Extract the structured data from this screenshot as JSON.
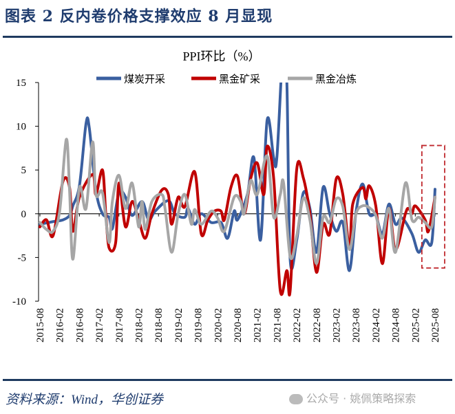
{
  "figure_title": "图表 2 反内卷价格支撑效应 8 月显现",
  "source_text": "资料来源：Wind，华创证券",
  "watermark": "公众号 · 姚佩策略探索",
  "chart_data": {
    "type": "line",
    "title": "PPI环比（%）",
    "xlabel": "",
    "ylabel": "",
    "ylim": [
      -10,
      15
    ],
    "yticks": [
      -10,
      -5,
      0,
      5,
      10,
      15
    ],
    "xlim": [
      "2015-08",
      "2025-08"
    ],
    "xtick_labels": [
      "2015-08",
      "2016-02",
      "2016-08",
      "2017-02",
      "2017-08",
      "2018-02",
      "2018-08",
      "2019-02",
      "2019-08",
      "2020-02",
      "2020-08",
      "2021-02",
      "2021-08",
      "2022-02",
      "2022-08",
      "2023-02",
      "2023-08",
      "2024-02",
      "2024-08",
      "2025-02",
      "2025-08"
    ],
    "grid": false,
    "legend_position": "top",
    "highlight_box": {
      "x_range": [
        "2025-04",
        "2025-08"
      ],
      "y_range": [
        -6.2,
        7.8
      ],
      "color": "#c0282d",
      "style": "dashed"
    },
    "series": [
      {
        "name": "煤炭开采",
        "color": "#3a5fa0",
        "points": [
          [
            "2015-08",
            -1.2
          ],
          [
            "2015-12",
            -0.9
          ],
          [
            "2016-03",
            -0.7
          ],
          [
            "2016-05",
            -0.2
          ],
          [
            "2016-06",
            0.9
          ],
          [
            "2016-08",
            3.2
          ],
          [
            "2016-10",
            10.3
          ],
          [
            "2016-11",
            9.8
          ],
          [
            "2017-01",
            2.7
          ],
          [
            "2017-03",
            0
          ],
          [
            "2017-05",
            -0.4
          ],
          [
            "2017-06",
            -1.7
          ],
          [
            "2017-08",
            2.4
          ],
          [
            "2017-10",
            1.9
          ],
          [
            "2017-12",
            -0.2
          ],
          [
            "2018-03",
            1.4
          ],
          [
            "2018-05",
            -0.7
          ],
          [
            "2018-07",
            0.3
          ],
          [
            "2018-11",
            1.5
          ],
          [
            "2019-01",
            0
          ],
          [
            "2019-04",
            -0.4
          ],
          [
            "2019-05",
            0.6
          ],
          [
            "2019-07",
            -1.2
          ],
          [
            "2019-09",
            0
          ],
          [
            "2019-12",
            -1
          ],
          [
            "2020-03",
            -1
          ],
          [
            "2020-05",
            -2.8
          ],
          [
            "2020-07",
            0.3
          ],
          [
            "2020-08",
            -0.7
          ],
          [
            "2020-11",
            2.2
          ],
          [
            "2021-01",
            6.4
          ],
          [
            "2021-03",
            -3
          ],
          [
            "2021-05",
            10.7
          ],
          [
            "2021-07",
            6.4
          ],
          [
            "2021-08",
            6.6
          ],
          [
            "2021-10",
            20
          ],
          [
            "2021-11",
            15
          ],
          [
            "2021-12",
            -5.2
          ],
          [
            "2022-02",
            -3
          ],
          [
            "2022-04",
            2.4
          ],
          [
            "2022-06",
            0.6
          ],
          [
            "2022-08",
            -4.4
          ],
          [
            "2022-10",
            3
          ],
          [
            "2022-12",
            0
          ],
          [
            "2023-02",
            -2
          ],
          [
            "2023-04",
            -1
          ],
          [
            "2023-06",
            -6.5
          ],
          [
            "2023-08",
            0.2
          ],
          [
            "2023-10",
            3.4
          ],
          [
            "2023-12",
            0
          ],
          [
            "2024-02",
            -0.2
          ],
          [
            "2024-04",
            -2.3
          ],
          [
            "2024-06",
            1.1
          ],
          [
            "2024-08",
            -1.2
          ],
          [
            "2024-10",
            -0.5
          ],
          [
            "2025-01",
            -2.3
          ],
          [
            "2025-03",
            -4.4
          ],
          [
            "2025-05",
            -3
          ],
          [
            "2025-07",
            -3.3
          ],
          [
            "2025-08",
            2.8
          ]
        ]
      },
      {
        "name": "黑金矿采",
        "color": "#c00000",
        "points": [
          [
            "2015-08",
            -1.5
          ],
          [
            "2015-10",
            -0.7
          ],
          [
            "2015-12",
            -2.5
          ],
          [
            "2016-03",
            3.7
          ],
          [
            "2016-05",
            3
          ],
          [
            "2016-06",
            -2
          ],
          [
            "2016-08",
            1.9
          ],
          [
            "2016-12",
            4.5
          ],
          [
            "2017-01",
            2.2
          ],
          [
            "2017-03",
            5
          ],
          [
            "2017-04",
            0
          ],
          [
            "2017-05",
            -3.9
          ],
          [
            "2017-07",
            -3.3
          ],
          [
            "2017-08",
            3.5
          ],
          [
            "2017-10",
            -1.5
          ],
          [
            "2017-12",
            1.4
          ],
          [
            "2018-02",
            -0.7
          ],
          [
            "2018-04",
            -2.8
          ],
          [
            "2018-06",
            0
          ],
          [
            "2018-09",
            2.7
          ],
          [
            "2018-11",
            2.2
          ],
          [
            "2018-12",
            -1.2
          ],
          [
            "2019-02",
            1.9
          ],
          [
            "2019-04",
            0.8
          ],
          [
            "2019-07",
            4.8
          ],
          [
            "2019-09",
            -2.3
          ],
          [
            "2019-11",
            -0.7
          ],
          [
            "2020-01",
            0.3
          ],
          [
            "2020-03",
            0.3
          ],
          [
            "2020-04",
            -0.7
          ],
          [
            "2020-06",
            3
          ],
          [
            "2020-08",
            4.3
          ],
          [
            "2020-10",
            0
          ],
          [
            "2020-12",
            4
          ],
          [
            "2021-02",
            5.8
          ],
          [
            "2021-04",
            2.2
          ],
          [
            "2021-05",
            7.7
          ],
          [
            "2021-07",
            4
          ],
          [
            "2021-09",
            -8.8
          ],
          [
            "2021-11",
            -6.5
          ],
          [
            "2021-12",
            -8.8
          ],
          [
            "2022-02",
            5.1
          ],
          [
            "2022-04",
            4.1
          ],
          [
            "2022-06",
            0
          ],
          [
            "2022-08",
            -6.7
          ],
          [
            "2022-10",
            -1.2
          ],
          [
            "2022-12",
            -2.3
          ],
          [
            "2023-02",
            4
          ],
          [
            "2023-04",
            2.2
          ],
          [
            "2023-06",
            -3.9
          ],
          [
            "2023-07",
            1.1
          ],
          [
            "2023-10",
            3
          ],
          [
            "2023-11",
            1.7
          ],
          [
            "2023-12",
            3.2
          ],
          [
            "2024-02",
            0.9
          ],
          [
            "2024-04",
            -5.7
          ],
          [
            "2024-06",
            0.6
          ],
          [
            "2024-08",
            -4.1
          ],
          [
            "2024-11",
            0
          ],
          [
            "2024-12",
            0.6
          ],
          [
            "2025-01",
            0
          ],
          [
            "2025-02",
            0.9
          ],
          [
            "2025-05",
            -0.7
          ],
          [
            "2025-06",
            -2
          ],
          [
            "2025-08",
            1.9
          ]
        ]
      },
      {
        "name": "黑金冶炼",
        "color": "#a6a6a6",
        "points": [
          [
            "2015-08",
            -1
          ],
          [
            "2015-10",
            -1.8
          ],
          [
            "2015-12",
            -2
          ],
          [
            "2016-02",
            0.3
          ],
          [
            "2016-04",
            8.5
          ],
          [
            "2016-05",
            2.7
          ],
          [
            "2016-06",
            -5.2
          ],
          [
            "2016-08",
            3
          ],
          [
            "2016-10",
            0.6
          ],
          [
            "2016-12",
            8.2
          ],
          [
            "2017-01",
            2.2
          ],
          [
            "2017-03",
            2.4
          ],
          [
            "2017-05",
            -3.3
          ],
          [
            "2017-06",
            1.4
          ],
          [
            "2017-08",
            4.4
          ],
          [
            "2017-10",
            0.6
          ],
          [
            "2017-12",
            3.5
          ],
          [
            "2018-02",
            -1.5
          ],
          [
            "2018-03",
            1.4
          ],
          [
            "2018-04",
            -1.8
          ],
          [
            "2018-06",
            1.4
          ],
          [
            "2018-09",
            2.2
          ],
          [
            "2018-10",
            0.6
          ],
          [
            "2018-12",
            -4.4
          ],
          [
            "2019-02",
            0
          ],
          [
            "2019-04",
            2.2
          ],
          [
            "2019-06",
            -1.2
          ],
          [
            "2019-07",
            0.5
          ],
          [
            "2019-09",
            -1.2
          ],
          [
            "2019-12",
            0.3
          ],
          [
            "2020-02",
            -0.5
          ],
          [
            "2020-04",
            -2
          ],
          [
            "2020-07",
            1.9
          ],
          [
            "2020-09",
            1.4
          ],
          [
            "2020-10",
            0
          ],
          [
            "2020-12",
            3.8
          ],
          [
            "2021-02",
            2.2
          ],
          [
            "2021-05",
            6.6
          ],
          [
            "2021-07",
            -0.4
          ],
          [
            "2021-09",
            2.2
          ],
          [
            "2021-10",
            3.5
          ],
          [
            "2021-12",
            -4.9
          ],
          [
            "2022-02",
            -2.5
          ],
          [
            "2022-04",
            1.8
          ],
          [
            "2022-06",
            -0.7
          ],
          [
            "2022-08",
            -5.7
          ],
          [
            "2022-10",
            -0.4
          ],
          [
            "2022-12",
            -1
          ],
          [
            "2023-02",
            1.7
          ],
          [
            "2023-04",
            0.8
          ],
          [
            "2023-06",
            -4.1
          ],
          [
            "2023-08",
            0
          ],
          [
            "2023-10",
            0.9
          ],
          [
            "2023-12",
            0.7
          ],
          [
            "2024-02",
            -0.2
          ],
          [
            "2024-04",
            -2.8
          ],
          [
            "2024-06",
            0.6
          ],
          [
            "2024-08",
            -4.4
          ],
          [
            "2024-11",
            3.5
          ],
          [
            "2025-01",
            -0.7
          ],
          [
            "2025-03",
            -0.4
          ],
          [
            "2025-05",
            -1
          ],
          [
            "2025-07",
            -1.5
          ],
          [
            "2025-08",
            1.9
          ]
        ]
      }
    ]
  }
}
